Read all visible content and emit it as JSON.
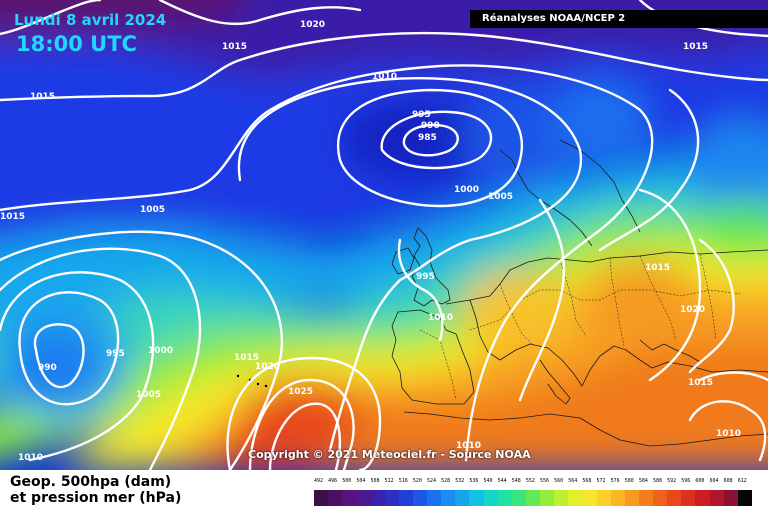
{
  "header": {
    "date": "Lundi 8 avril 2024",
    "time": "18:00 UTC",
    "source": "Réanalyses NOAA/NCEP 2"
  },
  "copyright": "Copyright © 2021 Meteociel.fr - Source NOAA",
  "legend": {
    "title": "Geop. 500hpa (dam) et pression mer (hPa)",
    "line1": "Geop. 500hpa (dam)",
    "line2": "et pression mer (hPa)",
    "scale_values": [
      "492",
      "496",
      "500",
      "504",
      "508",
      "512",
      "516",
      "520",
      "524",
      "528",
      "532",
      "536",
      "540",
      "544",
      "548",
      "552",
      "556",
      "560",
      "564",
      "568",
      "572",
      "576",
      "580",
      "584",
      "588",
      "592",
      "596",
      "600",
      "604",
      "608",
      "612"
    ],
    "scale_colors": [
      "#3a0f4a",
      "#4b1060",
      "#5a1378",
      "#4c1a8f",
      "#3a22a8",
      "#2e2ec4",
      "#2140d8",
      "#1c58e6",
      "#1a72ef",
      "#1a8cf2",
      "#16a6f0",
      "#14c0e6",
      "#14d6c8",
      "#22e2a2",
      "#3ae67c",
      "#62ea54",
      "#92ec3c",
      "#bdef30",
      "#e2f02c",
      "#f6e62c",
      "#fbd02a",
      "#fbb626",
      "#f89a22",
      "#f47e1e",
      "#ef621c",
      "#e8481c",
      "#de301e",
      "#cc1e22",
      "#b01828",
      "#8c1230",
      "#050505"
    ]
  },
  "isobar_labels": [
    {
      "text": "1020",
      "name": "isobar-label-1020-north"
    },
    {
      "text": "1015",
      "name": "isobar-label-1015-nw"
    },
    {
      "text": "1015",
      "name": "isobar-label-1015-west"
    },
    {
      "text": "1010",
      "name": "isobar-label-1010-north"
    },
    {
      "text": "1015",
      "name": "isobar-label-1015-northeast"
    },
    {
      "text": "995",
      "name": "isobar-label-995-low"
    },
    {
      "text": "990",
      "name": "isobar-label-990-low"
    },
    {
      "text": "985",
      "name": "isobar-label-985-low"
    },
    {
      "text": "1000",
      "name": "isobar-label-1000-scotland"
    },
    {
      "text": "1005",
      "name": "isobar-label-1005-north-sea"
    },
    {
      "text": "1005",
      "name": "isobar-label-1005-atlantic"
    },
    {
      "text": "1015",
      "name": "isobar-label-1015-far-west"
    },
    {
      "text": "995",
      "name": "isobar-label-995-ireland"
    },
    {
      "text": "1010",
      "name": "isobar-label-1010-biscay"
    },
    {
      "text": "1015",
      "name": "isobar-label-1015-central-europe"
    },
    {
      "text": "1020",
      "name": "isobar-label-1020-balkans"
    },
    {
      "text": "1015",
      "name": "isobar-label-1015-turkey"
    },
    {
      "text": "1010",
      "name": "isobar-label-1010-east-med"
    },
    {
      "text": "990",
      "name": "isobar-label-990-sw-low"
    },
    {
      "text": "995",
      "name": "isobar-label-995-sw-low"
    },
    {
      "text": "1000",
      "name": "isobar-label-1000-sw"
    },
    {
      "text": "1005",
      "name": "isobar-label-1005-sw"
    },
    {
      "text": "1015",
      "name": "isobar-label-1015-azores"
    },
    {
      "text": "1020",
      "name": "isobar-label-1020-azores"
    },
    {
      "text": "1025",
      "name": "isobar-label-1025-azores"
    },
    {
      "text": "1010",
      "name": "isobar-label-1010-southwest-corner"
    },
    {
      "text": "1010",
      "name": "isobar-label-1010-north-africa"
    }
  ]
}
